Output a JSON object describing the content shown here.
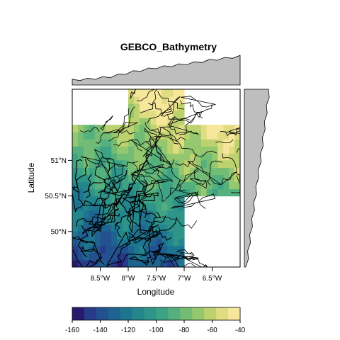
{
  "chart_data": {
    "type": "heatmap",
    "title": "GEBCO_Bathymetry",
    "xlabel": "Longitude",
    "ylabel": "Latitude",
    "xlim": [
      -9.0,
      -6.0
    ],
    "ylim": [
      49.5,
      52.0
    ],
    "x_ticks": [
      {
        "value": -8.5,
        "label": "8.5°W"
      },
      {
        "value": -8.0,
        "label": "8°W"
      },
      {
        "value": -7.5,
        "label": "7.5°W"
      },
      {
        "value": -7.0,
        "label": "7°W"
      },
      {
        "value": -6.5,
        "label": "6.5°W"
      }
    ],
    "y_ticks": [
      {
        "value": 51.0,
        "label": "51°N"
      },
      {
        "value": 50.5,
        "label": "50.5°N"
      },
      {
        "value": 50.0,
        "label": "50°N"
      }
    ],
    "data_extent_cells": [
      {
        "lon": [
          -8.0,
          -7.0
        ],
        "lat": [
          51.5,
          52.0
        ]
      },
      {
        "lon": [
          -9.0,
          -6.0
        ],
        "lat": [
          51.0,
          51.5
        ]
      },
      {
        "lon": [
          -9.0,
          -6.0
        ],
        "lat": [
          50.5,
          51.0
        ]
      },
      {
        "lon": [
          -9.0,
          -7.0
        ],
        "lat": [
          50.0,
          50.5
        ]
      },
      {
        "lon": [
          -9.0,
          -7.0
        ],
        "lat": [
          49.5,
          50.0
        ]
      }
    ],
    "colorbar": {
      "min": -160,
      "max": -40,
      "ticks": [
        -160,
        -140,
        -120,
        -100,
        -80,
        -60,
        -40
      ],
      "colors": [
        "#2a1a6e",
        "#283a8a",
        "#23508f",
        "#1f6390",
        "#1e7590",
        "#24868d",
        "#2f9589",
        "#3ea384",
        "#55b07e",
        "#73bc76",
        "#95c76f",
        "#bcd26f",
        "#e0dc82",
        "#f7e79b"
      ]
    },
    "marginal_top_profile": [
      -140,
      -138,
      -136,
      -133,
      -130,
      -126,
      -120,
      -113,
      -106,
      -100,
      -95,
      -90,
      -86,
      -82,
      -78,
      -74,
      -70,
      -65,
      -60,
      -56,
      -52,
      -48,
      -44
    ],
    "marginal_right_profile": [
      -62,
      -66,
      -70,
      -74,
      -78,
      -82,
      -86,
      -90,
      -94,
      -98,
      -103,
      -108,
      -112,
      -116,
      -120,
      -124,
      -128,
      -132,
      -136,
      -140,
      -144,
      -148,
      -152
    ]
  }
}
